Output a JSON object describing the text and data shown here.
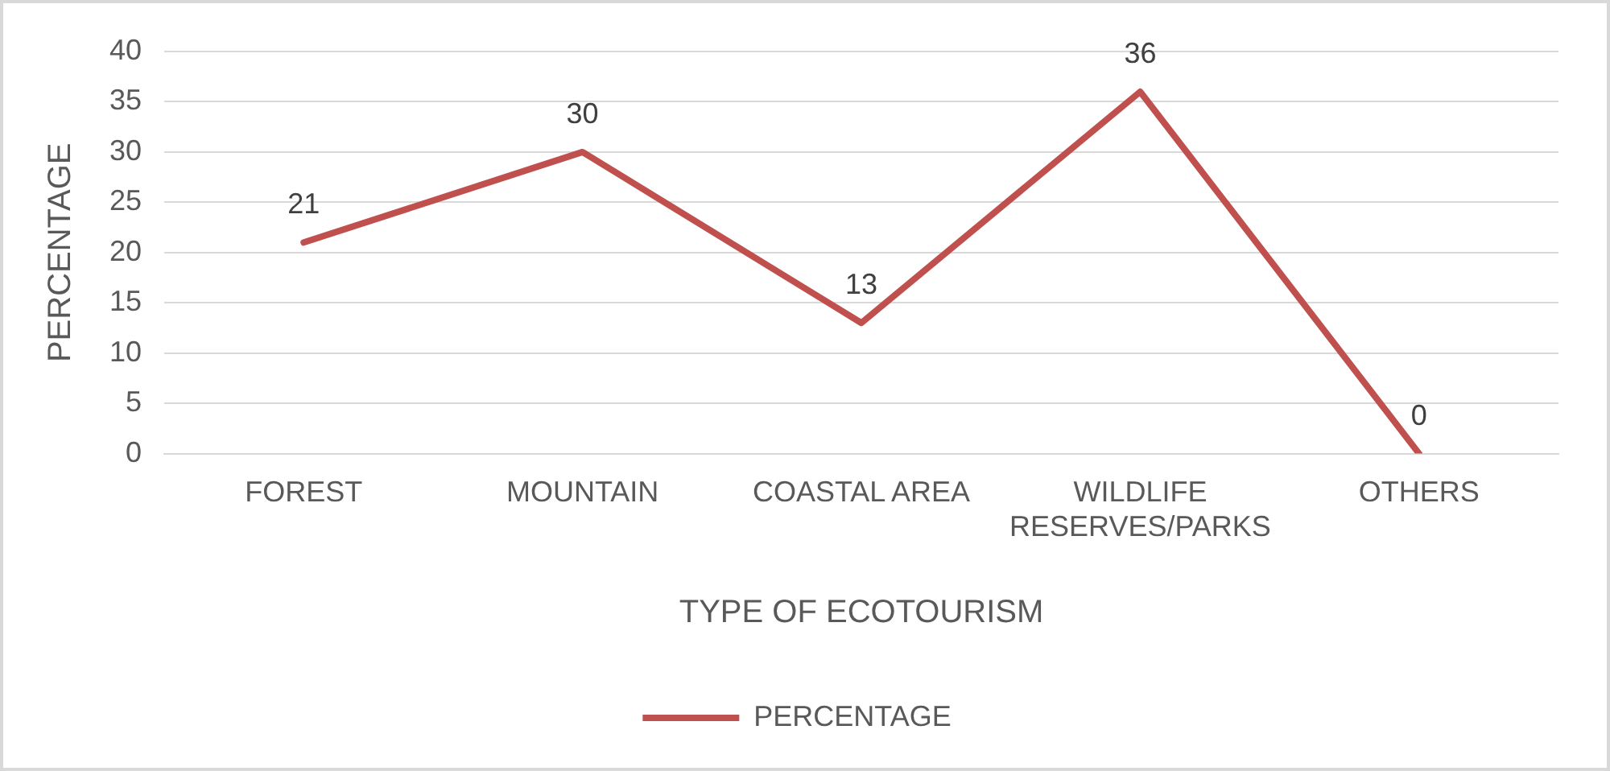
{
  "chart_data": {
    "type": "line",
    "xlabel": "TYPE OF ECOTOURISM",
    "ylabel": "PERCENTAGE",
    "categories": [
      "FOREST",
      "MOUNTAIN",
      "COASTAL AREA",
      "WILDLIFE RESERVES/PARKS",
      "OTHERS"
    ],
    "series": [
      {
        "name": "PERCENTAGE",
        "color": "#c0504d",
        "values": [
          21,
          30,
          13,
          36,
          0
        ]
      }
    ],
    "ylim": [
      0,
      40
    ],
    "yticks": [
      0,
      5,
      10,
      15,
      20,
      25,
      30,
      35,
      40
    ],
    "grid": "y",
    "legend": "bottom",
    "marker": "none",
    "line_style": "solid",
    "data_labels": true
  }
}
